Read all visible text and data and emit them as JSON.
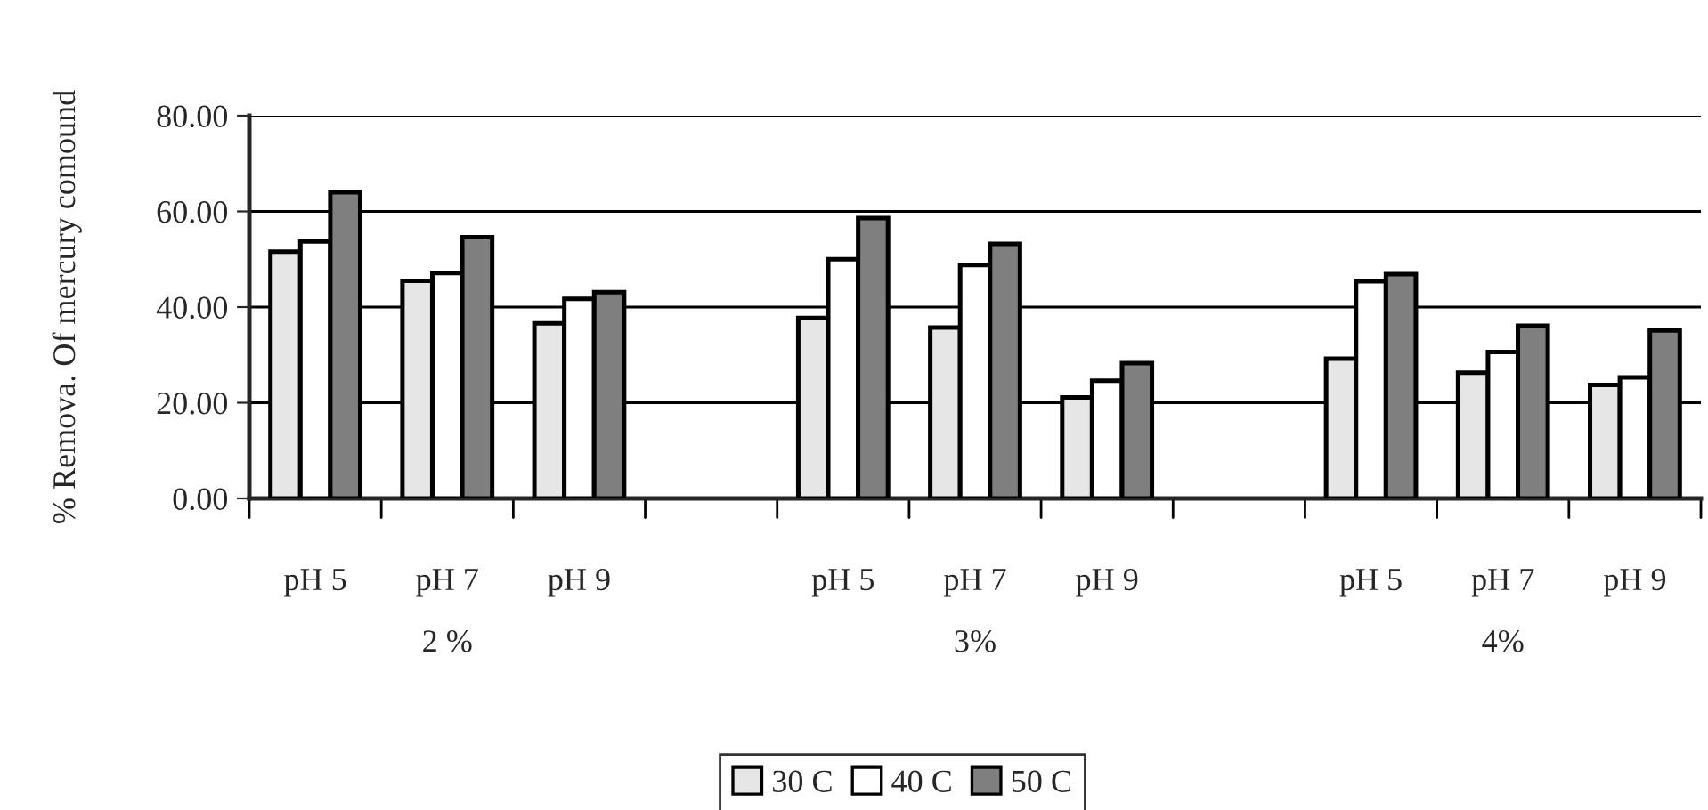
{
  "chart_data": {
    "type": "bar",
    "ylabel": "% Remova. Of mercury comound",
    "categories": [
      "pH 5",
      "pH 7",
      "pH 9",
      null,
      "pH 5",
      "pH 7",
      "pH 9",
      null,
      "pH 5",
      "pH 7",
      "pH 9"
    ],
    "series": [
      {
        "name": "30 C",
        "color": "#e6e6e6",
        "values": [
          51.6,
          45.5,
          36.6,
          null,
          37.7,
          35.7,
          21.1,
          null,
          29.2,
          26.3,
          23.7
        ]
      },
      {
        "name": "40 C",
        "color": "#ffffff",
        "values": [
          53.7,
          47.1,
          41.7,
          null,
          50.0,
          48.8,
          24.6,
          null,
          45.4,
          30.6,
          25.3
        ]
      },
      {
        "name": "50 C",
        "color": "#7f7f7f",
        "values": [
          64.0,
          54.6,
          43.1,
          null,
          58.6,
          53.2,
          28.3,
          null,
          46.9,
          36.1,
          35.1
        ]
      }
    ],
    "annotations": [
      "2 %",
      "3%",
      "4%"
    ],
    "ylim": [
      0,
      80
    ],
    "yticks": [
      {
        "value": 0,
        "label": "0.00"
      },
      {
        "value": 20,
        "label": "20.00"
      },
      {
        "value": 40,
        "label": "40.00"
      },
      {
        "value": 60,
        "label": "60.00"
      },
      {
        "value": 80,
        "label": "80.00"
      }
    ],
    "grid": "y",
    "legend": "bottom"
  }
}
